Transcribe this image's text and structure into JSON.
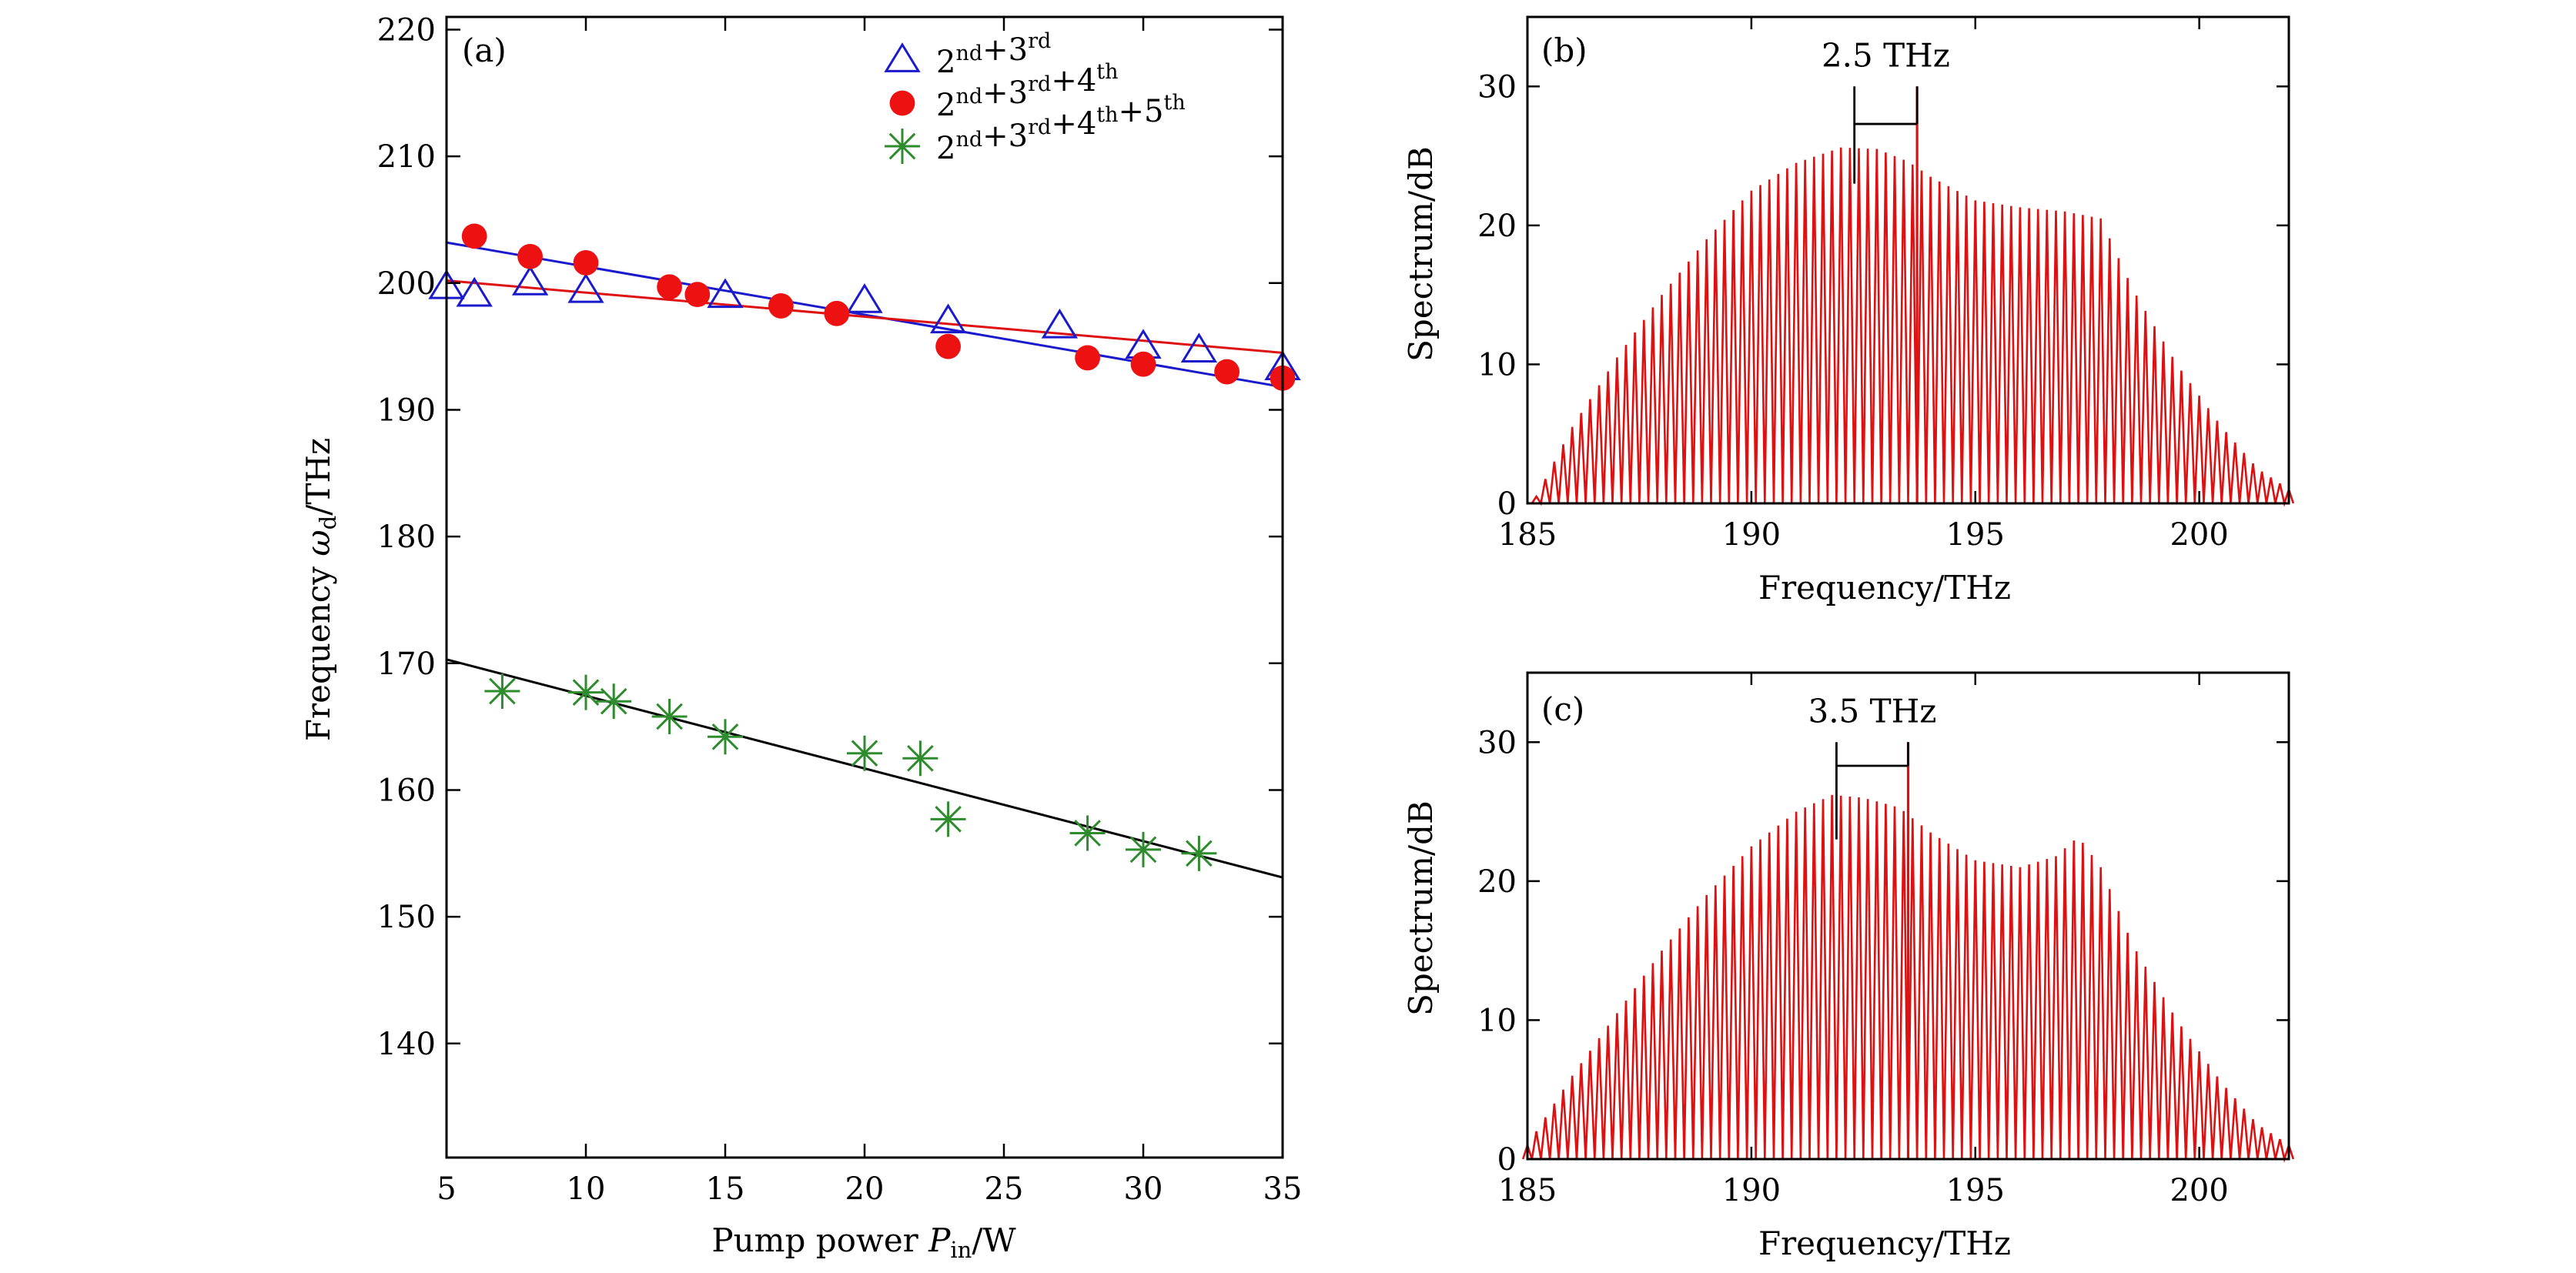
{
  "chart_data": [
    {
      "panel": "(a)",
      "type": "scatter",
      "xlabel": {
        "pre": "Pump power ",
        "var": "P",
        "sub": "in",
        "post": "/W"
      },
      "ylabel": {
        "pre": "Frequency ",
        "var": "ω",
        "sub": "d",
        "post": "/THz"
      },
      "xlim": [
        5,
        35
      ],
      "ylim": [
        131,
        221
      ],
      "xticks": [
        5,
        10,
        15,
        20,
        25,
        30,
        35
      ],
      "yticks": [
        140,
        150,
        160,
        170,
        180,
        190,
        200,
        210,
        220
      ],
      "legend_position": "top-right",
      "series": [
        {
          "name": "2nd+3rd",
          "legend": [
            [
              "2",
              "nd"
            ],
            [
              "+3",
              "rd"
            ]
          ],
          "marker": "open-triangle",
          "color": "#1a1acc",
          "fit_color": "#1a1acc",
          "x": [
            5,
            6,
            8,
            10,
            15,
            20,
            23,
            27,
            30,
            32,
            35
          ],
          "y": [
            199.7,
            199.1,
            200.0,
            199.4,
            199.0,
            198.6,
            197.0,
            196.6,
            195.0,
            194.7,
            193.3
          ],
          "fit": {
            "x": [
              5,
              35
            ],
            "y": [
              203.2,
              191.8
            ]
          }
        },
        {
          "name": "2nd+3rd+4th",
          "legend": [
            [
              "2",
              "nd"
            ],
            [
              "+3",
              "rd"
            ],
            [
              "+4",
              "th"
            ]
          ],
          "marker": "filled-circle",
          "color": "#ee1111",
          "fit_color": "#dd1111",
          "x": [
            6,
            8,
            10,
            13,
            14,
            17,
            19,
            23,
            28,
            30,
            33,
            35
          ],
          "y": [
            203.7,
            202.1,
            201.6,
            199.7,
            199.1,
            198.2,
            197.6,
            195.0,
            194.1,
            193.6,
            193.0,
            192.5
          ],
          "fit": {
            "x": [
              5,
              35
            ],
            "y": [
              200.2,
              194.5
            ]
          }
        },
        {
          "name": "2nd+3rd+4th+5th",
          "legend": [
            [
              "2",
              "nd"
            ],
            [
              "+3",
              "rd"
            ],
            [
              "+4",
              "th"
            ],
            [
              "+5",
              "th"
            ]
          ],
          "marker": "asterisk",
          "color": "#2e8b2e",
          "fit_color": "#000000",
          "x": [
            7,
            10,
            11,
            13,
            15,
            20,
            22,
            23,
            28,
            30,
            32
          ],
          "y": [
            167.8,
            167.7,
            167.0,
            165.8,
            164.2,
            162.9,
            162.5,
            157.7,
            156.6,
            155.3,
            155.0
          ],
          "fit": {
            "x": [
              5,
              35
            ],
            "y": [
              170.3,
              153.1
            ]
          }
        }
      ]
    },
    {
      "panel": "(b)",
      "type": "line",
      "xlabel": "Frequency/THz",
      "ylabel": "Spectrum/dB",
      "xlim": [
        185,
        202
      ],
      "ylim": [
        0,
        35
      ],
      "xticks": [
        185,
        190,
        195,
        200
      ],
      "yticks": [
        0,
        10,
        20,
        30
      ],
      "color": "#dd1111",
      "comb_spacing_thz": 0.2,
      "comb_start_thz": 185.2,
      "comb_end_thz": 202.0,
      "peak_line": {
        "x": 193.7,
        "y": 30
      },
      "annotation": {
        "text": "2.5 THz",
        "x1": 192.3,
        "x2": 193.7,
        "y": 27.3
      },
      "envelope": {
        "x": [
          185.2,
          186,
          187,
          188,
          189,
          190,
          191,
          192,
          192.8,
          193.5,
          194,
          195,
          196,
          197,
          197.8,
          198.5,
          199.5,
          200.5,
          201.3,
          202
        ],
        "y": [
          0.5,
          5.5,
          10.5,
          15,
          19,
          22.5,
          24.5,
          25.6,
          25.5,
          24.6,
          23.5,
          21.8,
          21.3,
          21,
          20.5,
          15.5,
          10,
          5.5,
          2.5,
          1
        ]
      }
    },
    {
      "panel": "(c)",
      "type": "line",
      "xlabel": "Frequency/THz",
      "ylabel": "Spectrum/dB",
      "xlim": [
        185,
        202
      ],
      "ylim": [
        0,
        35
      ],
      "xticks": [
        185,
        190,
        195,
        200
      ],
      "yticks": [
        0,
        10,
        20,
        30
      ],
      "color": "#dd1111",
      "comb_spacing_thz": 0.2,
      "comb_start_thz": 185.0,
      "comb_end_thz": 202.0,
      "peak_line": {
        "x": 193.5,
        "y": 30
      },
      "annotation": {
        "text": "3.5 THz",
        "x1": 191.9,
        "x2": 193.5,
        "y": 28.3
      },
      "envelope": {
        "x": [
          185,
          186,
          187,
          188,
          189,
          190,
          191,
          191.8,
          192.5,
          193.3,
          194,
          195,
          196,
          196.8,
          197.3,
          197.8,
          198.5,
          199.5,
          200.5,
          201.3,
          202
        ],
        "y": [
          1,
          6,
          10.5,
          15,
          19,
          22.5,
          25,
          26.2,
          26,
          25.3,
          23.5,
          21.5,
          21,
          21.8,
          23.2,
          21,
          15.5,
          10,
          5.5,
          2.5,
          1
        ]
      }
    }
  ]
}
